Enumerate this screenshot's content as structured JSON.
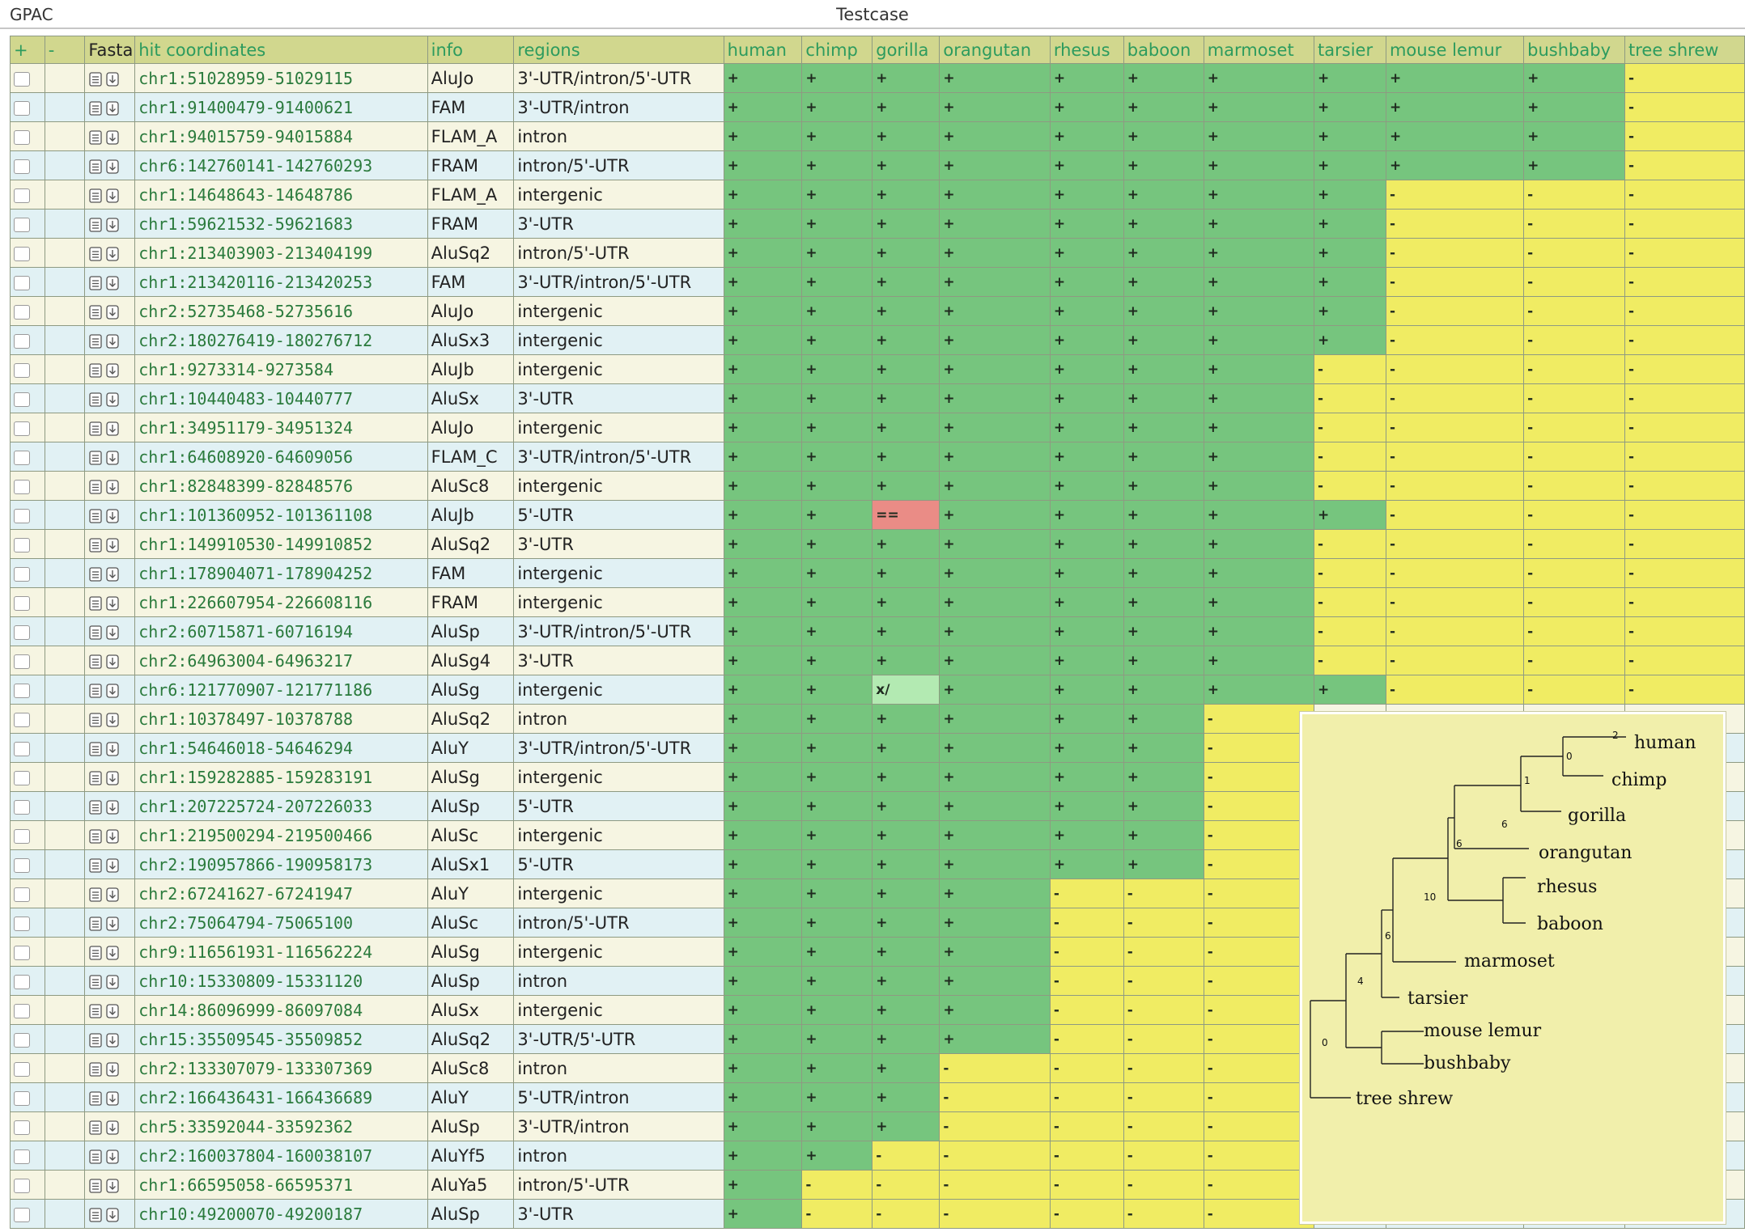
{
  "app": {
    "name": "GPAC",
    "title": "Testcase"
  },
  "table": {
    "header": {
      "plus": "+",
      "minus": "-",
      "fasta": "Fasta",
      "coordinates": "hit coordinates",
      "info": "info",
      "regions": "regions"
    },
    "species": [
      "human",
      "chimp",
      "gorilla",
      "orangutan",
      "rhesus",
      "baboon",
      "marmoset",
      "tarsier",
      "mouse lemur",
      "bushbaby",
      "tree shrew"
    ],
    "rows": [
      {
        "coord": "chr1:51028959-51029115",
        "info": "AluJo",
        "region": "3'-UTR/intron/5'-UTR",
        "calls": [
          "+",
          "+",
          "+",
          "+",
          "+",
          "+",
          "+",
          "+",
          "+",
          "+",
          "-"
        ]
      },
      {
        "coord": "chr1:91400479-91400621",
        "info": "FAM",
        "region": "3'-UTR/intron",
        "calls": [
          "+",
          "+",
          "+",
          "+",
          "+",
          "+",
          "+",
          "+",
          "+",
          "+",
          "-"
        ]
      },
      {
        "coord": "chr1:94015759-94015884",
        "info": "FLAM_A",
        "region": "intron",
        "calls": [
          "+",
          "+",
          "+",
          "+",
          "+",
          "+",
          "+",
          "+",
          "+",
          "+",
          "-"
        ]
      },
      {
        "coord": "chr6:142760141-142760293",
        "info": "FRAM",
        "region": "intron/5'-UTR",
        "calls": [
          "+",
          "+",
          "+",
          "+",
          "+",
          "+",
          "+",
          "+",
          "+",
          "+",
          "-"
        ]
      },
      {
        "coord": "chr1:14648643-14648786",
        "info": "FLAM_A",
        "region": "intergenic",
        "calls": [
          "+",
          "+",
          "+",
          "+",
          "+",
          "+",
          "+",
          "+",
          "-",
          "-",
          "-"
        ]
      },
      {
        "coord": "chr1:59621532-59621683",
        "info": "FRAM",
        "region": "3'-UTR",
        "calls": [
          "+",
          "+",
          "+",
          "+",
          "+",
          "+",
          "+",
          "+",
          "-",
          "-",
          "-"
        ]
      },
      {
        "coord": "chr1:213403903-213404199",
        "info": "AluSq2",
        "region": "intron/5'-UTR",
        "calls": [
          "+",
          "+",
          "+",
          "+",
          "+",
          "+",
          "+",
          "+",
          "-",
          "-",
          "-"
        ]
      },
      {
        "coord": "chr1:213420116-213420253",
        "info": "FAM",
        "region": "3'-UTR/intron/5'-UTR",
        "calls": [
          "+",
          "+",
          "+",
          "+",
          "+",
          "+",
          "+",
          "+",
          "-",
          "-",
          "-"
        ]
      },
      {
        "coord": "chr2:52735468-52735616",
        "info": "AluJo",
        "region": "intergenic",
        "calls": [
          "+",
          "+",
          "+",
          "+",
          "+",
          "+",
          "+",
          "+",
          "-",
          "-",
          "-"
        ]
      },
      {
        "coord": "chr2:180276419-180276712",
        "info": "AluSx3",
        "region": "intergenic",
        "calls": [
          "+",
          "+",
          "+",
          "+",
          "+",
          "+",
          "+",
          "+",
          "-",
          "-",
          "-"
        ]
      },
      {
        "coord": "chr1:9273314-9273584",
        "info": "AluJb",
        "region": "intergenic",
        "calls": [
          "+",
          "+",
          "+",
          "+",
          "+",
          "+",
          "+",
          "-",
          "-",
          "-",
          "-"
        ]
      },
      {
        "coord": "chr1:10440483-10440777",
        "info": "AluSx",
        "region": "3'-UTR",
        "calls": [
          "+",
          "+",
          "+",
          "+",
          "+",
          "+",
          "+",
          "-",
          "-",
          "-",
          "-"
        ]
      },
      {
        "coord": "chr1:34951179-34951324",
        "info": "AluJo",
        "region": "intergenic",
        "calls": [
          "+",
          "+",
          "+",
          "+",
          "+",
          "+",
          "+",
          "-",
          "-",
          "-",
          "-"
        ]
      },
      {
        "coord": "chr1:64608920-64609056",
        "info": "FLAM_C",
        "region": "3'-UTR/intron/5'-UTR",
        "calls": [
          "+",
          "+",
          "+",
          "+",
          "+",
          "+",
          "+",
          "-",
          "-",
          "-",
          "-"
        ]
      },
      {
        "coord": "chr1:82848399-82848576",
        "info": "AluSc8",
        "region": "intergenic",
        "calls": [
          "+",
          "+",
          "+",
          "+",
          "+",
          "+",
          "+",
          "-",
          "-",
          "-",
          "-"
        ]
      },
      {
        "coord": "chr1:101360952-101361108",
        "info": "AluJb",
        "region": "5'-UTR",
        "calls": [
          "+",
          "+",
          "==",
          "+",
          "+",
          "+",
          "+",
          "+",
          "-",
          "-",
          "-"
        ]
      },
      {
        "coord": "chr1:149910530-149910852",
        "info": "AluSq2",
        "region": "3'-UTR",
        "calls": [
          "+",
          "+",
          "+",
          "+",
          "+",
          "+",
          "+",
          "-",
          "-",
          "-",
          "-"
        ]
      },
      {
        "coord": "chr1:178904071-178904252",
        "info": "FAM",
        "region": "intergenic",
        "calls": [
          "+",
          "+",
          "+",
          "+",
          "+",
          "+",
          "+",
          "-",
          "-",
          "-",
          "-"
        ]
      },
      {
        "coord": "chr1:226607954-226608116",
        "info": "FRAM",
        "region": "intergenic",
        "calls": [
          "+",
          "+",
          "+",
          "+",
          "+",
          "+",
          "+",
          "-",
          "-",
          "-",
          "-"
        ]
      },
      {
        "coord": "chr2:60715871-60716194",
        "info": "AluSp",
        "region": "3'-UTR/intron/5'-UTR",
        "calls": [
          "+",
          "+",
          "+",
          "+",
          "+",
          "+",
          "+",
          "-",
          "-",
          "-",
          "-"
        ]
      },
      {
        "coord": "chr2:64963004-64963217",
        "info": "AluSg4",
        "region": "3'-UTR",
        "calls": [
          "+",
          "+",
          "+",
          "+",
          "+",
          "+",
          "+",
          "-",
          "-",
          "-",
          "-"
        ]
      },
      {
        "coord": "chr6:121770907-121771186",
        "info": "AluSg",
        "region": "intergenic",
        "calls": [
          "+",
          "+",
          "x/",
          "+",
          "+",
          "+",
          "+",
          "+",
          "-",
          "-",
          "-"
        ]
      },
      {
        "coord": "chr1:10378497-10378788",
        "info": "AluSq2",
        "region": "intron",
        "calls": [
          "+",
          "+",
          "+",
          "+",
          "+",
          "+",
          "-",
          "",
          "",
          "",
          ""
        ]
      },
      {
        "coord": "chr1:54646018-54646294",
        "info": "AluY",
        "region": "3'-UTR/intron/5'-UTR",
        "calls": [
          "+",
          "+",
          "+",
          "+",
          "+",
          "+",
          "-",
          "",
          "",
          "",
          ""
        ]
      },
      {
        "coord": "chr1:159282885-159283191",
        "info": "AluSg",
        "region": "intergenic",
        "calls": [
          "+",
          "+",
          "+",
          "+",
          "+",
          "+",
          "-",
          "",
          "",
          "",
          ""
        ]
      },
      {
        "coord": "chr1:207225724-207226033",
        "info": "AluSp",
        "region": "5'-UTR",
        "calls": [
          "+",
          "+",
          "+",
          "+",
          "+",
          "+",
          "-",
          "",
          "",
          "",
          ""
        ]
      },
      {
        "coord": "chr1:219500294-219500466",
        "info": "AluSc",
        "region": "intergenic",
        "calls": [
          "+",
          "+",
          "+",
          "+",
          "+",
          "+",
          "-",
          "",
          "",
          "",
          ""
        ]
      },
      {
        "coord": "chr2:190957866-190958173",
        "info": "AluSx1",
        "region": "5'-UTR",
        "calls": [
          "+",
          "+",
          "+",
          "+",
          "+",
          "+",
          "-",
          "",
          "",
          "",
          ""
        ]
      },
      {
        "coord": "chr2:67241627-67241947",
        "info": "AluY",
        "region": "intergenic",
        "calls": [
          "+",
          "+",
          "+",
          "+",
          "-",
          "-",
          "-",
          "",
          "",
          "",
          ""
        ]
      },
      {
        "coord": "chr2:75064794-75065100",
        "info": "AluSc",
        "region": "intron/5'-UTR",
        "calls": [
          "+",
          "+",
          "+",
          "+",
          "-",
          "-",
          "-",
          "",
          "",
          "",
          ""
        ]
      },
      {
        "coord": "chr9:116561931-116562224",
        "info": "AluSg",
        "region": "intergenic",
        "calls": [
          "+",
          "+",
          "+",
          "+",
          "-",
          "-",
          "-",
          "",
          "",
          "",
          ""
        ]
      },
      {
        "coord": "chr10:15330809-15331120",
        "info": "AluSp",
        "region": "intron",
        "calls": [
          "+",
          "+",
          "+",
          "+",
          "-",
          "-",
          "-",
          "",
          "",
          "",
          ""
        ]
      },
      {
        "coord": "chr14:86096999-86097084",
        "info": "AluSx",
        "region": "intergenic",
        "calls": [
          "+",
          "+",
          "+",
          "+",
          "-",
          "-",
          "-",
          "",
          "",
          "",
          ""
        ]
      },
      {
        "coord": "chr15:35509545-35509852",
        "info": "AluSq2",
        "region": "3'-UTR/5'-UTR",
        "calls": [
          "+",
          "+",
          "+",
          "+",
          "-",
          "-",
          "-",
          "",
          "",
          "",
          ""
        ]
      },
      {
        "coord": "chr2:133307079-133307369",
        "info": "AluSc8",
        "region": "intron",
        "calls": [
          "+",
          "+",
          "+",
          "-",
          "-",
          "-",
          "-",
          "",
          "",
          "",
          ""
        ]
      },
      {
        "coord": "chr2:166436431-166436689",
        "info": "AluY",
        "region": "5'-UTR/intron",
        "calls": [
          "+",
          "+",
          "+",
          "-",
          "-",
          "-",
          "-",
          "",
          "",
          "",
          ""
        ]
      },
      {
        "coord": "chr5:33592044-33592362",
        "info": "AluSp",
        "region": "3'-UTR/intron",
        "calls": [
          "+",
          "+",
          "+",
          "-",
          "-",
          "-",
          "-",
          "",
          "",
          "",
          ""
        ]
      },
      {
        "coord": "chr2:160037804-160038107",
        "info": "AluYf5",
        "region": "intron",
        "calls": [
          "+",
          "+",
          "-",
          "-",
          "-",
          "-",
          "-",
          "",
          "",
          "",
          ""
        ]
      },
      {
        "coord": "chr1:66595058-66595371",
        "info": "AluYa5",
        "region": "intron/5'-UTR",
        "calls": [
          "+",
          "-",
          "-",
          "-",
          "-",
          "-",
          "-",
          "",
          "",
          "",
          ""
        ]
      },
      {
        "coord": "chr10:49200070-49200187",
        "info": "AluSp",
        "region": "3'-UTR",
        "calls": [
          "+",
          "-",
          "-",
          "-",
          "-",
          "-",
          "-",
          "",
          "",
          "",
          ""
        ]
      }
    ]
  },
  "tree": {
    "leaves": [
      "human",
      "chimp",
      "gorilla",
      "orangutan",
      "rhesus",
      "baboon",
      "marmoset",
      "tarsier",
      "mouse lemur",
      "bushbaby",
      "tree shrew"
    ],
    "node_labels": [
      "2",
      "0",
      "1",
      "6",
      "6",
      "10",
      "6",
      "4",
      "0"
    ]
  },
  "colors": {
    "present": "#76c57e",
    "absent": "#f0ec63",
    "mismatch": "#ea8c86",
    "partial": "#b3eab2",
    "header": "#d1d78e",
    "header_text": "#2c9b5e",
    "row_cream": "#f6f5e2",
    "row_blue": "#e1f1f4"
  },
  "icons": {
    "fasta_doc": "document-icon",
    "fasta_download": "download-icon"
  }
}
